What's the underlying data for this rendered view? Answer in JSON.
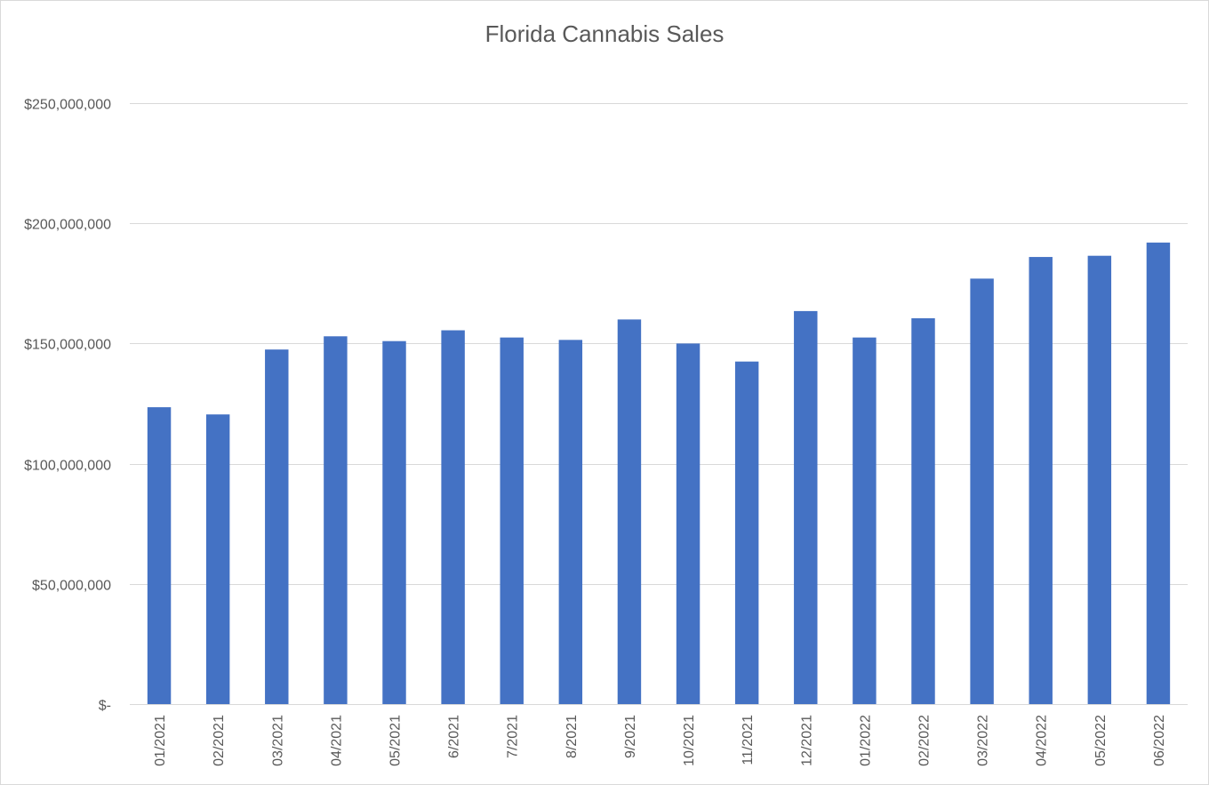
{
  "chart_data": {
    "type": "bar",
    "title": "Florida Cannabis Sales",
    "xlabel": "",
    "ylabel": "",
    "categories": [
      "01/2021",
      "02/2021",
      "03/2021",
      "04/2021",
      "05/2021",
      "6/2021",
      "7/2021",
      "8/2021",
      "9/2021",
      "10/2021",
      "11/2021",
      "12/2021",
      "01/2022",
      "02/2022",
      "03/2022",
      "04/2022",
      "05/2022",
      "06/2022"
    ],
    "values": [
      123500000,
      120500000,
      147500000,
      153000000,
      151000000,
      155500000,
      152500000,
      151500000,
      160000000,
      150000000,
      142500000,
      163500000,
      152500000,
      160500000,
      177000000,
      186000000,
      186500000,
      192000000
    ],
    "ylim": [
      0,
      250000000
    ],
    "yticks": [
      0,
      50000000,
      100000000,
      150000000,
      200000000,
      250000000
    ],
    "ytick_labels": [
      "$-",
      "$50,000,000",
      "$100,000,000",
      "$150,000,000",
      "$200,000,000",
      "$250,000,000"
    ],
    "grid": true,
    "legend": "none",
    "colors": {
      "bar": "#4472C4",
      "grid": "#D9D9D9",
      "text": "#595959"
    }
  }
}
